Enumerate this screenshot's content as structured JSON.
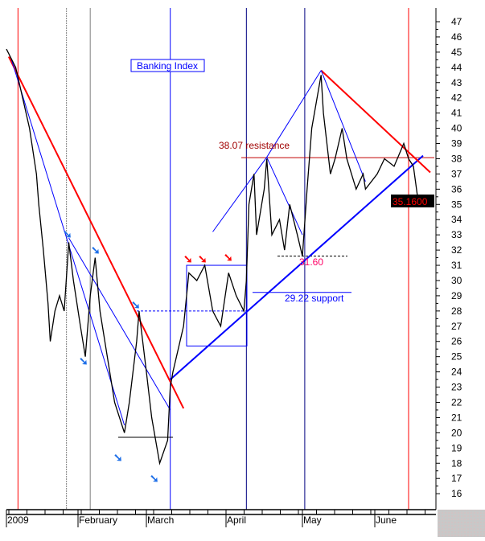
{
  "chart_data": {
    "type": "line",
    "title": "Banking Index",
    "ylim": [
      15,
      48
    ],
    "y_ticks": [
      16,
      17,
      18,
      19,
      20,
      21,
      22,
      23,
      24,
      25,
      26,
      27,
      28,
      29,
      30,
      31,
      32,
      33,
      34,
      35,
      36,
      37,
      38,
      39,
      40,
      41,
      42,
      43,
      44,
      45,
      46,
      47
    ],
    "x_tick_labels": [
      "2009",
      "February",
      "March",
      "April",
      "May",
      "June"
    ],
    "last_price_label": "35.1600",
    "colors": {
      "price": "#000000",
      "support": "#0000ff",
      "resistance": "#ff0000",
      "last_price_bg": "#000000",
      "last_price_text": "#ff0000"
    },
    "series": [
      {
        "x": [
          "2009-01-02",
          "2009-01-06",
          "2009-01-09",
          "2009-01-12",
          "2009-01-15",
          "2009-01-16",
          "2009-01-18",
          "2009-01-20",
          "2009-01-21",
          "2009-01-23",
          "2009-01-25",
          "2009-01-27",
          "2009-01-29",
          "2009-01-31",
          "2009-02-03",
          "2009-02-05",
          "2009-02-07",
          "2009-02-09",
          "2009-02-11",
          "2009-02-14",
          "2009-02-17",
          "2009-02-21",
          "2009-02-23",
          "2009-02-26",
          "2009-02-27",
          "2009-03-02",
          "2009-03-04",
          "2009-03-07",
          "2009-03-10",
          "2009-03-11",
          "2009-03-12",
          "2009-03-16",
          "2009-03-18",
          "2009-03-21",
          "2009-03-24",
          "2009-03-27",
          "2009-03-30",
          "2009-04-02",
          "2009-04-05",
          "2009-04-08",
          "2009-04-09",
          "2009-04-10",
          "2009-04-12",
          "2009-04-13",
          "2009-04-16",
          "2009-04-17",
          "2009-04-19",
          "2009-04-22",
          "2009-04-24",
          "2009-04-26",
          "2009-04-29",
          "2009-05-01",
          "2009-05-03",
          "2009-05-05",
          "2009-05-09",
          "2009-05-10",
          "2009-05-13",
          "2009-05-15",
          "2009-05-18",
          "2009-05-20",
          "2009-05-24",
          "2009-05-27",
          "2009-05-28",
          "2009-06-02",
          "2009-06-05",
          "2009-06-09",
          "2009-06-13",
          "2009-06-15",
          "2009-06-17",
          "2009-06-19"
        ],
        "y": [
          45.2,
          44,
          42,
          40,
          37,
          35,
          32,
          28.5,
          26,
          28,
          29,
          28,
          32.5,
          30,
          27,
          25,
          29,
          31.5,
          28,
          25,
          22,
          20,
          22,
          26,
          28,
          24,
          21,
          18,
          19.5,
          23,
          24,
          27,
          30.5,
          30,
          31,
          28,
          27,
          30.5,
          29,
          28,
          30,
          35,
          37,
          33,
          36,
          38,
          33,
          34,
          32,
          35,
          33,
          31.6,
          36,
          40,
          43.5,
          41,
          37,
          38,
          40,
          38,
          36,
          37,
          36,
          37,
          38,
          37.5,
          39,
          38,
          37.5,
          35.16
        ]
      }
    ],
    "annotations": {
      "title_box": "Banking Index",
      "resistance": {
        "label": "38.07 resistance",
        "value": 38.07
      },
      "level_3160": {
        "label": "31.60",
        "value": 31.6
      },
      "support": {
        "label": "29.22 support",
        "value": 29.22
      }
    },
    "vertical_markers": [
      {
        "date": "2009-01-07",
        "color": "#ff0000"
      },
      {
        "date": "2009-01-28",
        "color": "#808080"
      },
      {
        "date": "2009-02-07",
        "color": "#808080"
      },
      {
        "date": "2009-03-11",
        "color": "#0000ff"
      },
      {
        "date": "2009-04-09",
        "color": "#000080"
      },
      {
        "date": "2009-05-02",
        "color": "#000080"
      },
      {
        "date": "2009-06-15",
        "color": "#ff0000"
      }
    ],
    "trendlines": [
      {
        "from": [
          "2009-01-03",
          44.7
        ],
        "to": [
          "2009-03-16",
          21.6
        ],
        "color": "#ff0000",
        "width": 2
      },
      {
        "from": [
          "2009-01-04",
          44.6
        ],
        "to": [
          "2009-02-21",
          20.5
        ],
        "color": "#0000ff",
        "width": 1
      },
      {
        "from": [
          "2009-01-29",
          32.8
        ],
        "to": [
          "2009-03-11",
          21.5
        ],
        "color": "#0000ff",
        "width": 1
      },
      {
        "from": [
          "2009-03-11",
          23.5
        ],
        "to": [
          "2009-06-21",
          38.2
        ],
        "color": "#0000ff",
        "width": 2
      },
      {
        "from": [
          "2009-05-09",
          43.8
        ],
        "to": [
          "2009-06-24",
          37.1
        ],
        "color": "#ff0000",
        "width": 2
      },
      {
        "from": [
          "2009-05-09",
          43.8
        ],
        "to": [
          "2009-05-28",
          36.5
        ],
        "color": "#0000ff",
        "width": 1
      },
      {
        "from": [
          "2009-04-17",
          38.1
        ],
        "to": [
          "2009-05-09",
          43.8
        ],
        "color": "#0000ff",
        "width": 1
      },
      {
        "from": [
          "2009-03-27",
          33.2
        ],
        "to": [
          "2009-04-17",
          38.1
        ],
        "color": "#0000ff",
        "width": 1
      },
      {
        "from": [
          "2009-04-17",
          38.1
        ],
        "to": [
          "2009-05-01",
          33
        ],
        "color": "#0000ff",
        "width": 1
      }
    ]
  }
}
